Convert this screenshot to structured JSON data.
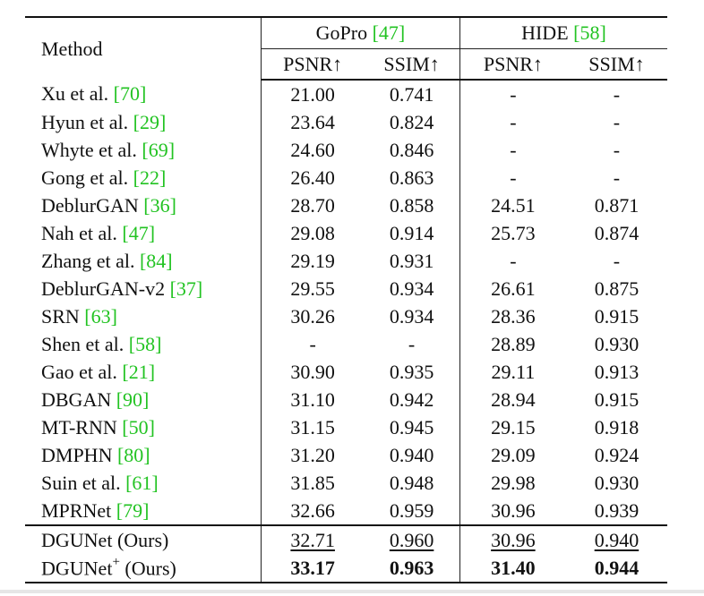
{
  "table": {
    "header": {
      "method": "Method",
      "gopro": {
        "name": "GoPro",
        "ref": "[47]"
      },
      "hide": {
        "name": "HIDE",
        "ref": "[58]"
      },
      "metrics": [
        "PSNR↑",
        "SSIM↑",
        "PSNR↑",
        "SSIM↑"
      ]
    },
    "rows": [
      {
        "name": "Xu et al.",
        "ref": "[70]",
        "gopro_psnr": "21.00",
        "gopro_ssim": "0.741",
        "hide_psnr": "-",
        "hide_ssim": "-"
      },
      {
        "name": "Hyun et al.",
        "ref": "[29]",
        "gopro_psnr": "23.64",
        "gopro_ssim": "0.824",
        "hide_psnr": "-",
        "hide_ssim": "-"
      },
      {
        "name": "Whyte et al.",
        "ref": "[69]",
        "gopro_psnr": "24.60",
        "gopro_ssim": "0.846",
        "hide_psnr": "-",
        "hide_ssim": "-"
      },
      {
        "name": "Gong et al.",
        "ref": "[22]",
        "gopro_psnr": "26.40",
        "gopro_ssim": "0.863",
        "hide_psnr": "-",
        "hide_ssim": "-"
      },
      {
        "name": "DeblurGAN",
        "ref": "[36]",
        "gopro_psnr": "28.70",
        "gopro_ssim": "0.858",
        "hide_psnr": "24.51",
        "hide_ssim": "0.871"
      },
      {
        "name": "Nah et al.",
        "ref": "[47]",
        "gopro_psnr": "29.08",
        "gopro_ssim": "0.914",
        "hide_psnr": "25.73",
        "hide_ssim": "0.874"
      },
      {
        "name": "Zhang et al.",
        "ref": "[84]",
        "gopro_psnr": "29.19",
        "gopro_ssim": "0.931",
        "hide_psnr": "-",
        "hide_ssim": "-"
      },
      {
        "name": "DeblurGAN-v2",
        "ref": "[37]",
        "gopro_psnr": "29.55",
        "gopro_ssim": "0.934",
        "hide_psnr": "26.61",
        "hide_ssim": "0.875"
      },
      {
        "name": "SRN",
        "ref": "[63]",
        "gopro_psnr": "30.26",
        "gopro_ssim": "0.934",
        "hide_psnr": "28.36",
        "hide_ssim": "0.915"
      },
      {
        "name": "Shen et al.",
        "ref": "[58]",
        "gopro_psnr": "-",
        "gopro_ssim": "-",
        "hide_psnr": "28.89",
        "hide_ssim": "0.930"
      },
      {
        "name": "Gao et al.",
        "ref": "[21]",
        "gopro_psnr": "30.90",
        "gopro_ssim": "0.935",
        "hide_psnr": "29.11",
        "hide_ssim": "0.913"
      },
      {
        "name": "DBGAN",
        "ref": "[90]",
        "gopro_psnr": "31.10",
        "gopro_ssim": "0.942",
        "hide_psnr": "28.94",
        "hide_ssim": "0.915"
      },
      {
        "name": "MT-RNN",
        "ref": "[50]",
        "gopro_psnr": "31.15",
        "gopro_ssim": "0.945",
        "hide_psnr": "29.15",
        "hide_ssim": "0.918"
      },
      {
        "name": "DMPHN",
        "ref": "[80]",
        "gopro_psnr": "31.20",
        "gopro_ssim": "0.940",
        "hide_psnr": "29.09",
        "hide_ssim": "0.924"
      },
      {
        "name": "Suin et al.",
        "ref": "[61]",
        "gopro_psnr": "31.85",
        "gopro_ssim": "0.948",
        "hide_psnr": "29.98",
        "hide_ssim": "0.930"
      },
      {
        "name": "MPRNet",
        "ref": "[79]",
        "gopro_psnr": "32.66",
        "gopro_ssim": "0.959",
        "hide_psnr": "30.96",
        "hide_ssim": "0.939"
      }
    ],
    "ours": [
      {
        "name": "DGUNet",
        "sup": "",
        "suffix": "(Ours)",
        "gopro_psnr": "32.71",
        "gopro_ssim": "0.960",
        "hide_psnr": "30.96",
        "hide_ssim": "0.940",
        "style": "underline"
      },
      {
        "name": "DGUNet",
        "sup": "+",
        "suffix": "(Ours)",
        "gopro_psnr": "33.17",
        "gopro_ssim": "0.963",
        "hide_psnr": "31.40",
        "hide_ssim": "0.944",
        "style": "bold"
      }
    ],
    "colors": {
      "citation": "#22c322",
      "text": "#111111"
    }
  }
}
